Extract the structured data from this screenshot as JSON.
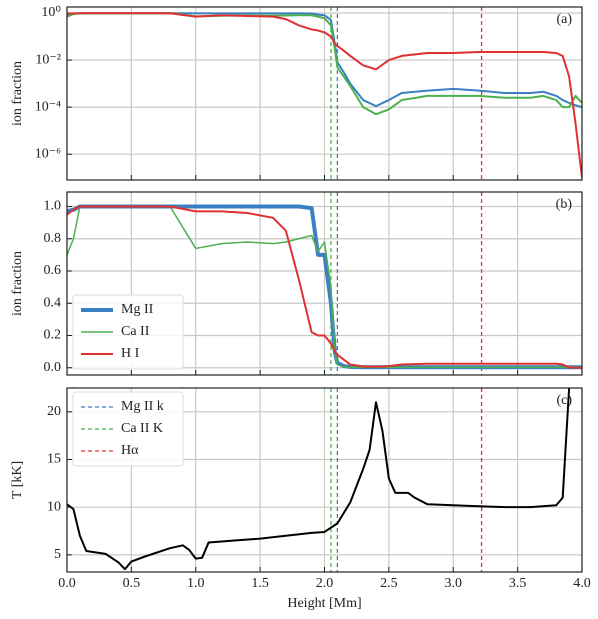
{
  "chart_data": [
    {
      "type": "line",
      "annotation": "(a)",
      "ylabel": "ion fraction",
      "log_y": true,
      "grid": true,
      "xlim": [
        0,
        4
      ],
      "xticks": [
        0,
        0.5,
        1,
        1.5,
        2,
        2.5,
        3,
        3.5,
        4
      ],
      "ylim": [
        8e-08,
        1.8
      ],
      "yticks": [
        {
          "value": 1,
          "label": "10⁰"
        },
        {
          "value": 0.01,
          "label": "10⁻²"
        },
        {
          "value": 0.0001,
          "label": "10⁻⁴"
        },
        {
          "value": 1e-06,
          "label": "10⁻⁶"
        }
      ],
      "x": [
        0,
        0.05,
        0.1,
        0.2,
        0.4,
        0.6,
        0.8,
        1.0,
        1.2,
        1.4,
        1.6,
        1.7,
        1.8,
        1.9,
        1.95,
        2.0,
        2.05,
        2.08,
        2.1,
        2.15,
        2.2,
        2.3,
        2.4,
        2.5,
        2.6,
        2.8,
        3.0,
        3.2,
        3.4,
        3.6,
        3.7,
        3.8,
        3.85,
        3.9,
        3.95,
        4.0
      ],
      "series": [
        {
          "name": "Mg II",
          "color": "#3b7fc4",
          "width": 2,
          "values": [
            0.9,
            0.95,
            0.97,
            0.98,
            0.98,
            0.98,
            0.98,
            0.97,
            0.97,
            0.97,
            0.97,
            0.97,
            0.96,
            0.95,
            0.85,
            0.8,
            0.5,
            0.05,
            0.008,
            0.003,
            0.001,
            0.0002,
            0.00011,
            0.0002,
            0.0004,
            0.0005,
            0.0006,
            0.0005,
            0.0004,
            0.0004,
            0.00045,
            0.0003,
            0.0002,
            0.00015,
            0.00012,
            0.0001
          ]
        },
        {
          "name": "Ca II",
          "color": "#4cb04c",
          "width": 2,
          "values": [
            0.7,
            0.9,
            0.98,
            0.98,
            0.98,
            0.98,
            0.98,
            0.72,
            0.76,
            0.78,
            0.76,
            0.78,
            0.8,
            0.8,
            0.7,
            0.6,
            0.3,
            0.03,
            0.005,
            0.002,
            0.0008,
            0.0001,
            5e-05,
            8e-05,
            0.0002,
            0.0003,
            0.0003,
            0.0003,
            0.00025,
            0.00025,
            0.0003,
            0.0002,
            0.0001,
            0.0001,
            0.0003,
            0.00015
          ]
        },
        {
          "name": "H I",
          "color": "#e03030",
          "width": 2,
          "values": [
            0.95,
            0.97,
            0.98,
            0.98,
            0.98,
            0.98,
            0.98,
            0.7,
            0.8,
            0.75,
            0.7,
            0.55,
            0.3,
            0.2,
            0.18,
            0.15,
            0.1,
            0.05,
            0.04,
            0.025,
            0.015,
            0.006,
            0.004,
            0.01,
            0.015,
            0.02,
            0.02,
            0.022,
            0.022,
            0.022,
            0.022,
            0.02,
            0.015,
            0.002,
            2e-05,
            1e-07
          ]
        }
      ]
    },
    {
      "type": "line",
      "annotation": "(b)",
      "ylabel": "ion fraction",
      "grid": true,
      "legend": "lower left",
      "xlim": [
        0,
        4
      ],
      "xticks": [
        0,
        0.5,
        1,
        1.5,
        2,
        2.5,
        3,
        3.5,
        4
      ],
      "ylim": [
        -0.045,
        1.09
      ],
      "yticks": [
        {
          "value": 0,
          "label": "0.0"
        },
        {
          "value": 0.2,
          "label": "0.2"
        },
        {
          "value": 0.4,
          "label": "0.4"
        },
        {
          "value": 0.6,
          "label": "0.6"
        },
        {
          "value": 0.8,
          "label": "0.8"
        },
        {
          "value": 1,
          "label": "1.0"
        }
      ],
      "x": [
        0,
        0.05,
        0.1,
        0.2,
        0.4,
        0.6,
        0.8,
        1.0,
        1.2,
        1.4,
        1.6,
        1.7,
        1.8,
        1.9,
        1.95,
        2.0,
        2.05,
        2.08,
        2.1,
        2.15,
        2.2,
        2.3,
        2.4,
        2.5,
        2.6,
        2.8,
        3.0,
        3.2,
        3.4,
        3.6,
        3.7,
        3.8,
        3.85,
        3.9,
        3.95,
        4.0
      ],
      "series": [
        {
          "name": "Mg II",
          "color": "#3b7fc4",
          "width": 4,
          "values": [
            0.97,
            0.98,
            1.0,
            1.0,
            1.0,
            1.0,
            1.0,
            1.0,
            1.0,
            1.0,
            1.0,
            1.0,
            1.0,
            0.99,
            0.7,
            0.7,
            0.4,
            0.1,
            0.03,
            0.01,
            0.005,
            0.003,
            0.003,
            0.003,
            0.003,
            0.003,
            0.003,
            0.003,
            0.003,
            0.003,
            0.003,
            0.003,
            0.003,
            0.003,
            0.003,
            0.003
          ]
        },
        {
          "name": "Ca II",
          "color": "#4cb04c",
          "width": 1.5,
          "values": [
            0.7,
            0.8,
            1.0,
            1.0,
            1.0,
            1.0,
            1.0,
            0.74,
            0.77,
            0.78,
            0.77,
            0.78,
            0.8,
            0.82,
            0.72,
            0.78,
            0.5,
            0.1,
            0.02,
            0.005,
            0.002,
            0.002,
            0.002,
            0.002,
            0.002,
            0.002,
            0.002,
            0.002,
            0.002,
            0.002,
            0.002,
            0.002,
            0.002,
            0.002,
            0.002,
            0.002
          ]
        },
        {
          "name": "H I",
          "color": "#e03030",
          "width": 2,
          "values": [
            0.95,
            0.98,
            1.0,
            1.0,
            1.0,
            1.0,
            1.0,
            0.97,
            0.97,
            0.96,
            0.93,
            0.85,
            0.55,
            0.22,
            0.2,
            0.2,
            0.15,
            0.1,
            0.08,
            0.05,
            0.02,
            0.008,
            0.006,
            0.01,
            0.02,
            0.025,
            0.025,
            0.025,
            0.025,
            0.025,
            0.025,
            0.025,
            0.02,
            0.002,
            0,
            0
          ]
        }
      ]
    },
    {
      "type": "line",
      "annotation": "(c)",
      "ylabel": "T [kK]",
      "xlabel": "Height [Mm]",
      "grid": true,
      "legend": "upper left",
      "xlim": [
        0,
        4
      ],
      "xticks": [
        {
          "value": 0,
          "label": "0.0"
        },
        0.5,
        {
          "value": 1,
          "label": "1.0"
        },
        1.5,
        {
          "value": 2,
          "label": "2.0"
        },
        2.5,
        {
          "value": 3,
          "label": "3.0"
        },
        3.5,
        {
          "value": 4,
          "label": "4.0"
        }
      ],
      "ylim": [
        3.2,
        22.5
      ],
      "yticks": [
        5,
        10,
        15,
        20
      ],
      "x": [
        0,
        0.05,
        0.1,
        0.15,
        0.3,
        0.4,
        0.45,
        0.5,
        0.6,
        0.8,
        0.9,
        0.95,
        1.0,
        1.05,
        1.1,
        1.3,
        1.5,
        1.7,
        1.9,
        2.0,
        2.1,
        2.2,
        2.3,
        2.35,
        2.4,
        2.45,
        2.5,
        2.55,
        2.65,
        2.7,
        2.8,
        3.0,
        3.2,
        3.4,
        3.6,
        3.8,
        3.85,
        3.9
      ],
      "series": [
        {
          "name": "T",
          "color": "#000000",
          "width": 2,
          "values": [
            10.3,
            9.8,
            7,
            5.4,
            5.1,
            4.2,
            3.5,
            4.3,
            4.8,
            5.7,
            6,
            5.5,
            4.6,
            4.7,
            6.3,
            6.5,
            6.7,
            7,
            7.3,
            7.4,
            8.3,
            10.5,
            14,
            16,
            21,
            18,
            13,
            11.5,
            11.5,
            11,
            10.3,
            10.2,
            10.1,
            10,
            10,
            10.2,
            11,
            22.5
          ]
        }
      ],
      "vlines": [
        {
          "name": "Mg II k",
          "color": "#3b7fc4",
          "x": 2.1
        },
        {
          "name": "Ca II K",
          "color": "#4cb04c",
          "x": 2.05
        },
        {
          "name": "Hα",
          "color": "#e03030",
          "x": 3.22
        }
      ]
    }
  ]
}
